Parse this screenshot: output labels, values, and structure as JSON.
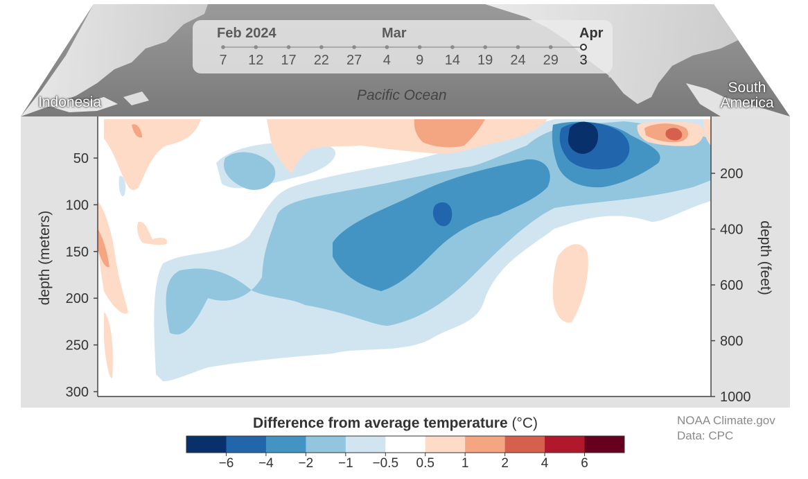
{
  "colors": {
    "bins": [
      "#08306b",
      "#2166ac",
      "#4393c3",
      "#92c5de",
      "#d1e5f0",
      "#ffffff",
      "#fddbc7",
      "#f4a582",
      "#d6604d",
      "#b2182b",
      "#67001f"
    ],
    "panel_background": "#e2e2e2",
    "map_land": "#d9d9d9",
    "map_sea": "#8c8c8c"
  },
  "map": {
    "ocean_label": "Pacific Ocean",
    "regions": [
      "Indonesia",
      "South America"
    ]
  },
  "timeline": {
    "months": [
      {
        "label": "Feb 2024",
        "current": false
      },
      {
        "label": "Mar",
        "current": false
      },
      {
        "label": "Apr",
        "current": true
      }
    ],
    "dates": [
      "7",
      "12",
      "17",
      "22",
      "27",
      "4",
      "9",
      "14",
      "19",
      "24",
      "29",
      "3"
    ],
    "selected": "3"
  },
  "chart_data": {
    "type": "heatmap",
    "title": "",
    "xlabel": "",
    "ylabel": "depth (meters)",
    "y2label": "depth (feet)",
    "ylim": [
      0,
      300
    ],
    "y2lim": [
      0,
      1000
    ],
    "y_ticks": [
      50,
      100,
      150,
      200,
      250,
      300
    ],
    "y2_ticks": [
      200,
      400,
      600,
      800,
      1000
    ],
    "y_reversed": true,
    "x_left_label": "Indonesia",
    "x_right_label": "South America",
    "colorbar": {
      "title": "Difference from average temperature",
      "unit": "(°C)",
      "ticks": [
        "−6",
        "−4",
        "−2",
        "−1",
        "−0.5",
        "0.5",
        "1",
        "2",
        "4",
        "6"
      ]
    },
    "features": [
      {
        "level": -6,
        "x_center_frac": 0.79,
        "depth_center_m": 22,
        "note": "strongest cold core"
      },
      {
        "level": -4,
        "x_center_frac": 0.56,
        "depth_center_m": 105
      },
      {
        "level": 2,
        "x_center_frac": 0.935,
        "depth_center_m": 20
      },
      {
        "level": 1,
        "x_center_frac": 0.58,
        "depth_center_m": 15
      }
    ]
  },
  "credits": {
    "line1": "NOAA Climate.gov",
    "line2": "Data: CPC"
  }
}
